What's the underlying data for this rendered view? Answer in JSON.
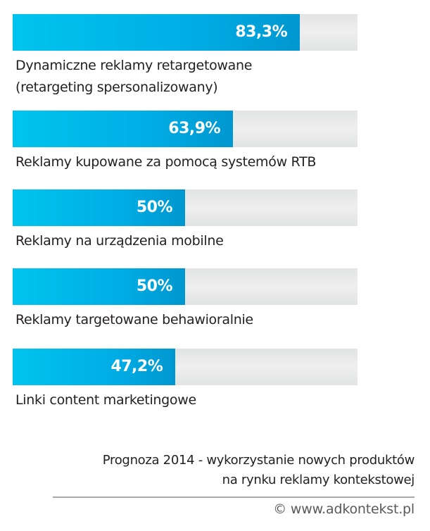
{
  "chart_data": {
    "type": "bar",
    "orientation": "horizontal",
    "title": "Prognoza 2014 - wykorzystanie nowych produktów na rynku reklamy kontekstowej",
    "xlim": [
      0,
      100
    ],
    "categories": [
      [
        "Dynamiczne reklamy retargetowane",
        "(retargeting spersonalizowany)"
      ],
      [
        "Reklamy kupowane za pomocą systemów RTB"
      ],
      [
        "Reklamy  na urządzenia mobilne"
      ],
      [
        "Reklamy targetowane behawioralnie"
      ],
      [
        "Linki content marketingowe"
      ]
    ],
    "values": [
      83.3,
      63.9,
      50,
      50,
      47.2
    ],
    "value_labels": [
      "83,3%",
      "63,9%",
      "50%",
      "50%",
      "47,2%"
    ],
    "colors": {
      "bar_start": "#00c4ee",
      "bar_end": "#0097d0",
      "track": "#e9eaea"
    }
  },
  "caption": {
    "line1": "Prognoza 2014 - wykorzystanie nowych produktów",
    "line2": "na rynku reklamy kontekstowej"
  },
  "credit": "© www.adkontekst.pl"
}
